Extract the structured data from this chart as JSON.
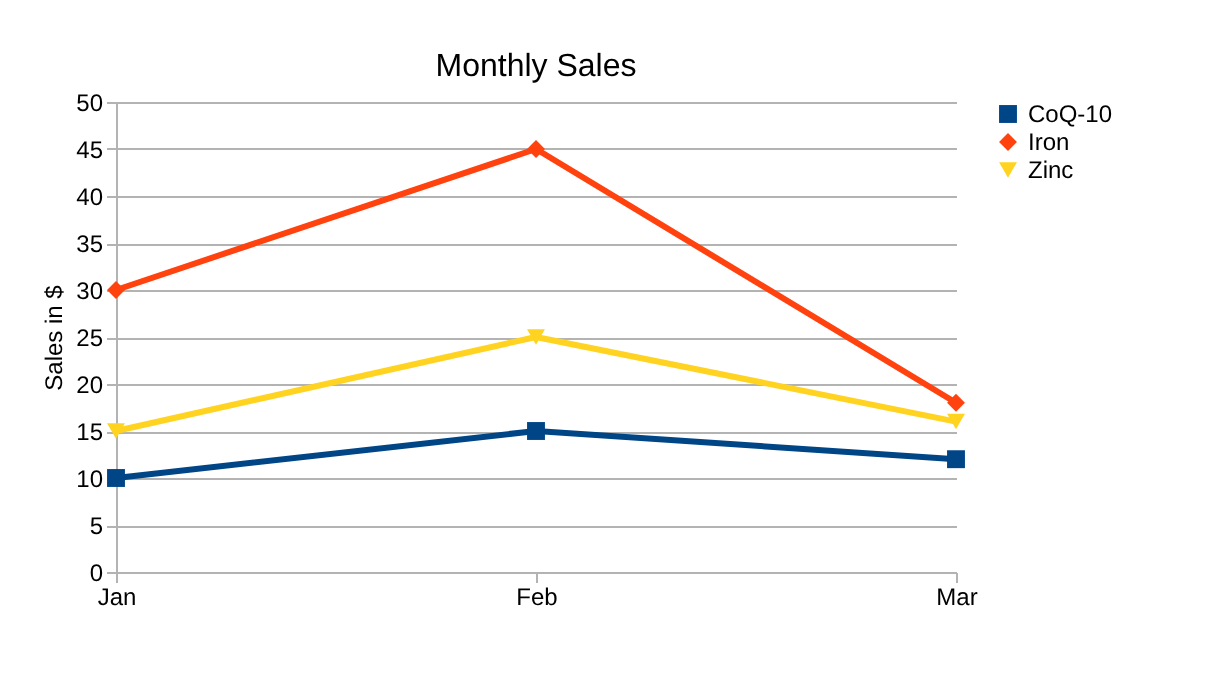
{
  "chart_data": {
    "type": "line",
    "title": "Monthly Sales",
    "ylabel": "Sales in $",
    "categories": [
      "Jan",
      "Feb",
      "Mar"
    ],
    "ylim": [
      0,
      50
    ],
    "yticks": [
      0,
      5,
      10,
      15,
      20,
      25,
      30,
      35,
      40,
      45,
      50
    ],
    "grid": "y",
    "legend": "right",
    "line_style": "solid",
    "series": [
      {
        "name": "CoQ-10",
        "color": "#004586",
        "marker": "square",
        "values": [
          10,
          15,
          12
        ]
      },
      {
        "name": "Iron",
        "color": "#ff420e",
        "marker": "diamond",
        "values": [
          30,
          45,
          18
        ]
      },
      {
        "name": "Zinc",
        "color": "#ffd320",
        "marker": "triangle_down",
        "values": [
          15,
          25,
          16
        ]
      }
    ]
  }
}
